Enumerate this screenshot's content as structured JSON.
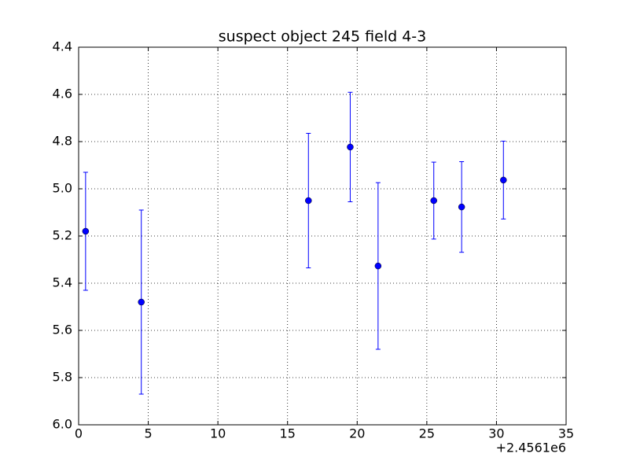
{
  "chart_data": {
    "type": "errorbar",
    "title": "suspect object 245 field 4-3",
    "x": [
      0.5,
      4.5,
      16.5,
      19.5,
      21.5,
      25.5,
      27.5,
      30.5
    ],
    "values": [
      5.18,
      5.48,
      5.05,
      4.823,
      5.327,
      5.05,
      5.077,
      4.963
    ],
    "errors": [
      0.25,
      0.39,
      0.285,
      0.232,
      0.353,
      0.163,
      0.192,
      0.165
    ],
    "color": "#0000ff",
    "xlim": [
      0,
      35
    ],
    "xticks": [
      0,
      5,
      10,
      15,
      20,
      25,
      30,
      35
    ],
    "x_offset_label": "+2.4561e6",
    "ylim": [
      6,
      4.4
    ],
    "yticks": [
      4.4,
      4.6,
      4.8,
      {
        "value": 5,
        "label": "5.0"
      },
      5.2,
      5.4,
      5.6,
      5.8,
      {
        "value": 6,
        "label": "6.0"
      }
    ],
    "grid": true
  }
}
